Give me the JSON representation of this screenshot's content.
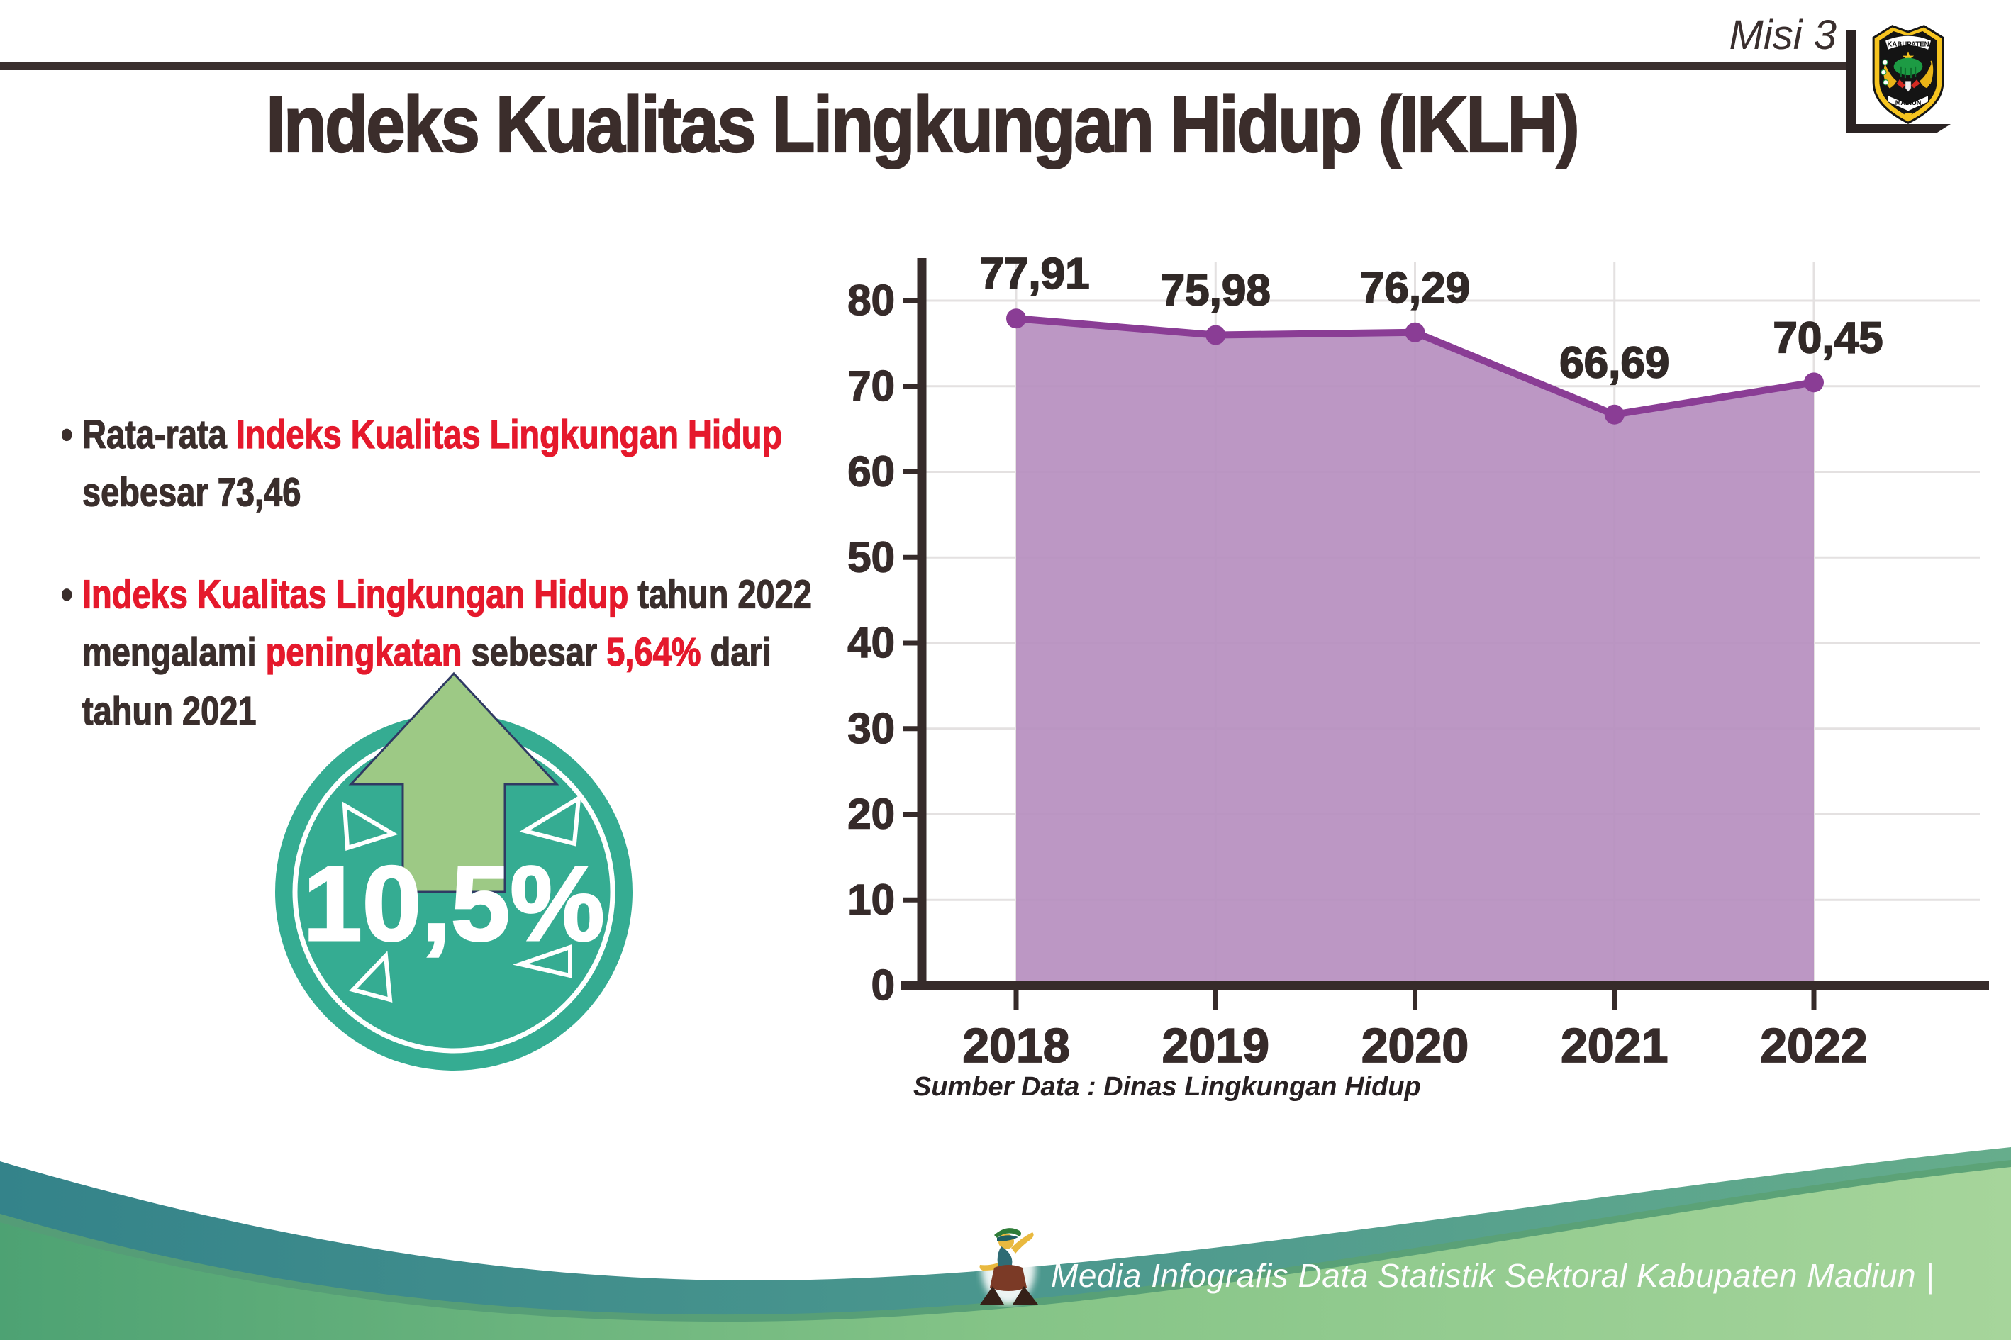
{
  "header": {
    "misi_label": "Misi 3",
    "logo": {
      "top_text": "KABUPATEN",
      "bottom_text": "MADIUN"
    }
  },
  "title": "Indeks Kualitas Lingkungan Hidup (IKLH)",
  "ui": {
    "bullet_char": "•"
  },
  "bullets": [
    {
      "lines": [
        [
          {
            "text": "Rata-rata ",
            "color": "dark"
          },
          {
            "text": "Indeks Kualitas Lingkungan Hidup",
            "color": "red"
          }
        ],
        [
          {
            "text": "sebesar 73,46",
            "color": "dark"
          }
        ]
      ]
    },
    {
      "lines": [
        [
          {
            "text": "Indeks Kualitas Lingkungan Hidup",
            "color": "red"
          },
          {
            "text": " tahun 2022",
            "color": "dark"
          }
        ],
        [
          {
            "text": "mengalami ",
            "color": "dark"
          },
          {
            "text": "peningkatan",
            "color": "red"
          },
          {
            "text": " sebesar ",
            "color": "dark"
          },
          {
            "text": "5,64%",
            "color": "red"
          },
          {
            "text": " dari",
            "color": "dark"
          }
        ],
        [
          {
            "text": "tahun 2021",
            "color": "dark"
          }
        ]
      ]
    }
  ],
  "badge": {
    "value": "10,5%",
    "circle_color": "#35ac92",
    "arrow_color": "#9dc985",
    "arrow_outline": "#2f3a63"
  },
  "chart_data": {
    "type": "area",
    "title": "Indeks Kualitas Lingkungan Hidup (IKLH)",
    "categories": [
      "2018",
      "2019",
      "2020",
      "2021",
      "2022"
    ],
    "values": [
      77.91,
      75.98,
      76.29,
      66.69,
      70.45
    ],
    "point_labels": [
      "77,91",
      "75,98",
      "76,29",
      "66,69",
      "70,45"
    ],
    "ylim": [
      0,
      80
    ],
    "yticks": [
      0,
      10,
      20,
      30,
      40,
      50,
      60,
      70,
      80
    ],
    "grid": true,
    "legend": "none",
    "line_color": "#8a3d95",
    "fill_color": "#b78fc0",
    "axis_color": "#362b2a",
    "grid_color": "#e4e1e1",
    "source_note": "Sumber Data : Dinas Lingkungan Hidup"
  },
  "footer": {
    "text": "Media Infografis Data Statistik Sektoral Kabupaten Madiun |"
  }
}
